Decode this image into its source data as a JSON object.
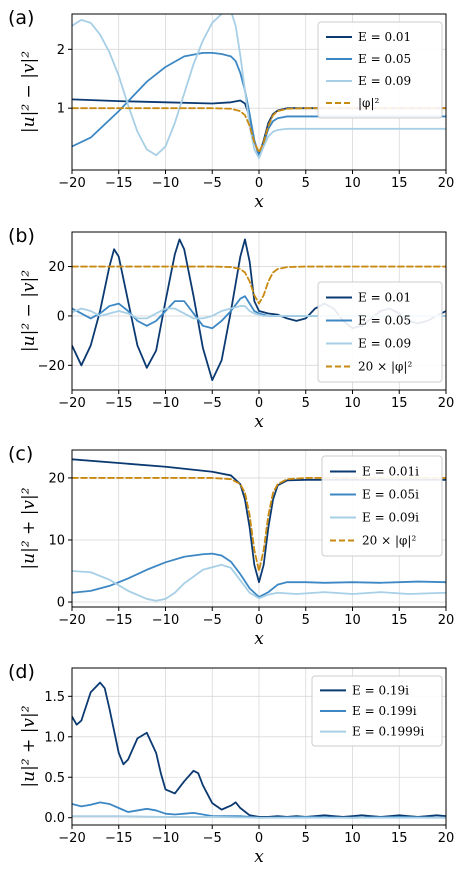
{
  "colors": {
    "dark": "#0b3a72",
    "mid": "#3d88c4",
    "light": "#a7cfe6",
    "ref": "#c98a12"
  },
  "chart_data": [
    {
      "type": "line",
      "panel_label": "(a)",
      "xlabel": "x",
      "ylabel": "|u|² − |v|²",
      "xlim": [
        -20,
        20
      ],
      "ylim": [
        -0.05,
        2.6
      ],
      "xticks": [
        "−20",
        "−15",
        "−10",
        "−5",
        "0",
        "5",
        "10",
        "15",
        "20"
      ],
      "yticks": [
        "1",
        "2"
      ],
      "grid": true,
      "legend_position": "top-right",
      "series": [
        {
          "name": "E = 0.01",
          "color_key": "dark",
          "x": [
            -20,
            -15,
            -10,
            -5,
            -3,
            -2,
            -1.5,
            -1,
            -0.5,
            0,
            0.5,
            1,
            1.5,
            2,
            3,
            5,
            10,
            15,
            20
          ],
          "y": [
            1.15,
            1.12,
            1.1,
            1.08,
            1.1,
            1.13,
            1.08,
            0.85,
            0.45,
            0.2,
            0.45,
            0.75,
            0.9,
            0.96,
            1.0,
            1.0,
            1.0,
            1.0,
            1.0
          ]
        },
        {
          "name": "E = 0.05",
          "color_key": "mid",
          "x": [
            -20,
            -18,
            -15,
            -12,
            -10,
            -8,
            -6,
            -5,
            -4,
            -3,
            -2.5,
            -2,
            -1.5,
            -1,
            -0.5,
            0,
            0.5,
            1,
            1.5,
            2,
            3,
            5,
            10,
            15,
            20
          ],
          "y": [
            0.35,
            0.5,
            0.95,
            1.45,
            1.7,
            1.88,
            1.94,
            1.94,
            1.92,
            1.88,
            1.8,
            1.6,
            1.3,
            0.9,
            0.45,
            0.18,
            0.4,
            0.65,
            0.78,
            0.83,
            0.86,
            0.86,
            0.86,
            0.86,
            0.86
          ]
        },
        {
          "name": "E = 0.09",
          "color_key": "light",
          "x": [
            -20,
            -19,
            -18,
            -17,
            -16,
            -15,
            -14,
            -13,
            -12,
            -11,
            -10,
            -9,
            -8,
            -7,
            -6,
            -5,
            -4,
            -3,
            -2.5,
            -2,
            -1.5,
            -1,
            -0.5,
            0,
            0.5,
            1,
            1.5,
            2,
            3,
            5,
            10,
            15,
            20
          ],
          "y": [
            2.4,
            2.5,
            2.45,
            2.25,
            1.95,
            1.55,
            1.05,
            0.6,
            0.3,
            0.2,
            0.35,
            0.75,
            1.25,
            1.75,
            2.15,
            2.45,
            2.6,
            2.65,
            2.4,
            1.9,
            1.3,
            0.7,
            0.3,
            0.15,
            0.35,
            0.52,
            0.6,
            0.63,
            0.65,
            0.65,
            0.65,
            0.65,
            0.65
          ]
        },
        {
          "name": "|φ|²",
          "color_key": "ref",
          "dashed": true,
          "x": [
            -20,
            -5,
            -3,
            -2,
            -1.5,
            -1,
            -0.5,
            0,
            0.5,
            1,
            1.5,
            2,
            3,
            5,
            20
          ],
          "y": [
            1.0,
            1.0,
            0.99,
            0.95,
            0.88,
            0.7,
            0.42,
            0.25,
            0.42,
            0.7,
            0.88,
            0.95,
            0.99,
            1.0,
            1.0
          ]
        }
      ]
    },
    {
      "type": "line",
      "panel_label": "(b)",
      "xlabel": "x",
      "ylabel": "|u|² − |v|²",
      "xlim": [
        -20,
        20
      ],
      "ylim": [
        -30,
        34
      ],
      "xticks": [
        "−20",
        "−15",
        "−10",
        "−5",
        "0",
        "5",
        "10",
        "15",
        "20"
      ],
      "yticks": [
        "−20",
        "0",
        "20"
      ],
      "grid": true,
      "legend_position": "bottom-right",
      "series": [
        {
          "name": "E = 0.01",
          "color_key": "dark",
          "x": [
            -20,
            -19,
            -18,
            -17,
            -16,
            -15.5,
            -15,
            -14,
            -13,
            -12,
            -11,
            -10,
            -9,
            -8.5,
            -8,
            -7,
            -6,
            -5,
            -4,
            -3,
            -2,
            -1.5,
            -1,
            -0.5,
            0,
            0.5,
            1,
            2,
            3,
            4,
            5,
            6,
            7,
            8,
            9,
            10,
            11,
            12,
            13,
            14,
            15,
            16,
            17,
            18,
            19,
            20
          ],
          "y": [
            -12,
            -20,
            -12,
            2,
            20,
            27,
            24,
            6,
            -12,
            -21,
            -14,
            6,
            25,
            31,
            27,
            8,
            -13,
            -26,
            -18,
            2,
            24,
            31,
            22,
            6,
            2,
            1.5,
            1,
            0.5,
            -1,
            -2,
            -1,
            3,
            5,
            3,
            -2,
            -5,
            -4,
            -1,
            2,
            3,
            1,
            -2,
            -3,
            -2,
            0,
            2
          ]
        },
        {
          "name": "E = 0.05",
          "color_key": "mid",
          "x": [
            -20,
            -19,
            -18,
            -17,
            -16,
            -15,
            -14,
            -13,
            -12,
            -11,
            -10,
            -9,
            -8,
            -7,
            -6,
            -5,
            -4,
            -3,
            -2,
            -1.5,
            -1,
            -0.5,
            0,
            0.5,
            1,
            2,
            3,
            5,
            10,
            15,
            20
          ],
          "y": [
            3,
            1,
            -1,
            1,
            4,
            5,
            2,
            -2,
            -4,
            -2,
            2,
            6,
            6,
            1,
            -4,
            -5,
            -2,
            2,
            7,
            8,
            5,
            2,
            1,
            0.5,
            0,
            0,
            0,
            0,
            0,
            0,
            0
          ]
        },
        {
          "name": "E = 0.09",
          "color_key": "light",
          "x": [
            -20,
            -19,
            -18,
            -17,
            -16,
            -15,
            -14,
            -13,
            -12,
            -11,
            -10,
            -9,
            -8,
            -7,
            -6,
            -5,
            -4,
            -3,
            -2,
            -1.5,
            -1,
            -0.5,
            0,
            0.5,
            1,
            2,
            3,
            5,
            10,
            15,
            20
          ],
          "y": [
            1.5,
            3,
            2,
            0,
            1,
            2,
            1,
            -1,
            -1,
            1,
            3,
            3,
            1,
            -1,
            -1,
            0,
            2,
            3,
            4,
            4,
            2,
            1,
            0.5,
            0,
            0,
            0,
            0,
            0,
            0,
            0,
            0
          ]
        },
        {
          "name": "20 × |φ|²",
          "color_key": "ref",
          "dashed": true,
          "x": [
            -20,
            -5,
            -3,
            -2,
            -1.5,
            -1,
            -0.5,
            0,
            0.5,
            1,
            1.5,
            2,
            3,
            5,
            20
          ],
          "y": [
            20,
            20,
            19.8,
            19,
            17.6,
            14,
            8.4,
            5,
            8.4,
            14,
            17.6,
            19,
            19.8,
            20,
            20
          ]
        }
      ]
    },
    {
      "type": "line",
      "panel_label": "(c)",
      "xlabel": "x",
      "ylabel": "|u|² + |v|²",
      "xlim": [
        -20,
        20
      ],
      "ylim": [
        -0.8,
        24.5
      ],
      "xticks": [
        "−20",
        "−15",
        "−10",
        "−5",
        "0",
        "5",
        "10",
        "15",
        "20"
      ],
      "yticks": [
        "0",
        "10",
        "20"
      ],
      "grid": true,
      "legend_position": "top-right",
      "series": [
        {
          "name": "E = 0.01i",
          "color_key": "dark",
          "x": [
            -20,
            -15,
            -10,
            -5,
            -3,
            -2,
            -1.5,
            -1,
            -0.5,
            0,
            0.5,
            1,
            1.5,
            2,
            3,
            5,
            10,
            15,
            20
          ],
          "y": [
            23,
            22.4,
            21.8,
            21,
            20.4,
            19,
            16.5,
            12,
            6,
            3.2,
            6,
            12,
            16.5,
            18.8,
            19.6,
            19.7,
            19.7,
            19.7,
            19.7
          ]
        },
        {
          "name": "E = 0.05i",
          "color_key": "mid",
          "x": [
            -20,
            -18,
            -16,
            -14,
            -12,
            -10,
            -8,
            -6,
            -5,
            -4,
            -3,
            -2,
            -1,
            0,
            1,
            2,
            3,
            5,
            7,
            10,
            13,
            15,
            17,
            20
          ],
          "y": [
            1.5,
            1.8,
            2.6,
            3.8,
            5.2,
            6.4,
            7.3,
            7.7,
            7.8,
            7.5,
            6.5,
            4.5,
            2.2,
            0.8,
            1.6,
            2.8,
            3.2,
            3.2,
            3.1,
            3.2,
            3.1,
            3.2,
            3.3,
            3.2
          ]
        },
        {
          "name": "E = 0.09i",
          "color_key": "light",
          "x": [
            -20,
            -18,
            -16,
            -14,
            -12,
            -11,
            -10,
            -9,
            -8,
            -6,
            -4,
            -3,
            -2,
            -1,
            0,
            1,
            2,
            4,
            7,
            10,
            13,
            16,
            20
          ],
          "y": [
            5,
            4.8,
            3.6,
            1.8,
            0.5,
            0.2,
            0.5,
            1.5,
            3,
            5.2,
            6,
            5.5,
            3.5,
            1.5,
            0.6,
            1.2,
            1.5,
            1.3,
            1.6,
            1.3,
            1.6,
            1.3,
            1.5
          ]
        },
        {
          "name": "20 × |φ|²",
          "color_key": "ref",
          "dashed": true,
          "x": [
            -20,
            -5,
            -3,
            -2,
            -1.5,
            -1,
            -0.5,
            0,
            0.5,
            1,
            1.5,
            2,
            3,
            5,
            20
          ],
          "y": [
            20,
            20,
            19.8,
            19,
            17.6,
            14,
            8.4,
            5,
            8.4,
            14,
            17.6,
            19,
            19.8,
            20,
            20
          ]
        }
      ]
    },
    {
      "type": "line",
      "panel_label": "(d)",
      "xlabel": "x",
      "ylabel": "|u|² + |v|²",
      "xlim": [
        -20,
        20
      ],
      "ylim": [
        -0.09,
        1.85
      ],
      "xticks": [
        "−20",
        "−15",
        "−10",
        "−5",
        "0",
        "5",
        "10",
        "15",
        "20"
      ],
      "yticks": [
        "0.0",
        "0.5",
        "1.0",
        "1.5"
      ],
      "grid": true,
      "legend_position": "top-right",
      "series": [
        {
          "name": "E = 0.19i",
          "color_key": "dark",
          "x": [
            -20,
            -19.5,
            -19,
            -18,
            -17,
            -16.5,
            -16,
            -15,
            -14.5,
            -14,
            -13,
            -12,
            -11,
            -10.5,
            -10,
            -9,
            -8,
            -7,
            -6.5,
            -6,
            -5,
            -4,
            -3,
            -2.5,
            -2,
            -1,
            0,
            1,
            2,
            3,
            4,
            5,
            6,
            7,
            8,
            9,
            10,
            11,
            12,
            13,
            14,
            15,
            16,
            17,
            18,
            19,
            20
          ],
          "y": [
            1.25,
            1.15,
            1.2,
            1.55,
            1.67,
            1.6,
            1.35,
            0.8,
            0.66,
            0.72,
            0.98,
            1.05,
            0.8,
            0.55,
            0.35,
            0.3,
            0.45,
            0.58,
            0.55,
            0.4,
            0.18,
            0.1,
            0.15,
            0.19,
            0.12,
            0.03,
            0.01,
            0.01,
            0.02,
            0.01,
            0.02,
            0.01,
            0.02,
            0.03,
            0.02,
            0.01,
            0.02,
            0.03,
            0.02,
            0.01,
            0.02,
            0.03,
            0.02,
            0.01,
            0.02,
            0.03,
            0.02
          ]
        },
        {
          "name": "E = 0.199i",
          "color_key": "mid",
          "x": [
            -20,
            -19,
            -18,
            -17,
            -16,
            -15,
            -14,
            -13,
            -12,
            -11,
            -10,
            -9,
            -8,
            -7,
            -6,
            -5,
            -4,
            -3,
            -2,
            -1,
            0,
            5,
            10,
            15,
            20
          ],
          "y": [
            0.17,
            0.14,
            0.16,
            0.19,
            0.17,
            0.12,
            0.07,
            0.09,
            0.11,
            0.09,
            0.05,
            0.04,
            0.05,
            0.06,
            0.04,
            0.02,
            0.02,
            0.02,
            0.02,
            0.01,
            0.0,
            0.01,
            0.0,
            0.01,
            0.0
          ]
        },
        {
          "name": "E = 0.1999i",
          "color_key": "light",
          "x": [
            -20,
            -15,
            -10,
            -5,
            0,
            5,
            10,
            15,
            20
          ],
          "y": [
            0.02,
            0.02,
            0.01,
            0.01,
            0.0,
            0.0,
            0.0,
            0.0,
            0.0
          ]
        }
      ]
    }
  ]
}
